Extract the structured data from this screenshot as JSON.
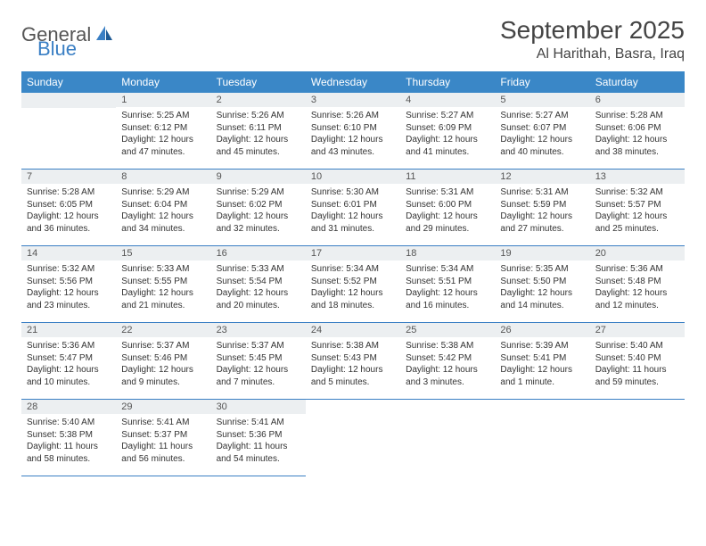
{
  "logo": {
    "text1": "General",
    "text2": "Blue"
  },
  "title": "September 2025",
  "location": "Al Harithah, Basra, Iraq",
  "weekdays": [
    "Sunday",
    "Monday",
    "Tuesday",
    "Wednesday",
    "Thursday",
    "Friday",
    "Saturday"
  ],
  "colors": {
    "header_bg": "#3a87c7",
    "accent": "#3a7fc4",
    "daynum_bg": "#eceff1"
  },
  "grid": [
    [
      null,
      {
        "n": "1",
        "sr": "5:25 AM",
        "ss": "6:12 PM",
        "dl": "12 hours and 47 minutes."
      },
      {
        "n": "2",
        "sr": "5:26 AM",
        "ss": "6:11 PM",
        "dl": "12 hours and 45 minutes."
      },
      {
        "n": "3",
        "sr": "5:26 AM",
        "ss": "6:10 PM",
        "dl": "12 hours and 43 minutes."
      },
      {
        "n": "4",
        "sr": "5:27 AM",
        "ss": "6:09 PM",
        "dl": "12 hours and 41 minutes."
      },
      {
        "n": "5",
        "sr": "5:27 AM",
        "ss": "6:07 PM",
        "dl": "12 hours and 40 minutes."
      },
      {
        "n": "6",
        "sr": "5:28 AM",
        "ss": "6:06 PM",
        "dl": "12 hours and 38 minutes."
      }
    ],
    [
      {
        "n": "7",
        "sr": "5:28 AM",
        "ss": "6:05 PM",
        "dl": "12 hours and 36 minutes."
      },
      {
        "n": "8",
        "sr": "5:29 AM",
        "ss": "6:04 PM",
        "dl": "12 hours and 34 minutes."
      },
      {
        "n": "9",
        "sr": "5:29 AM",
        "ss": "6:02 PM",
        "dl": "12 hours and 32 minutes."
      },
      {
        "n": "10",
        "sr": "5:30 AM",
        "ss": "6:01 PM",
        "dl": "12 hours and 31 minutes."
      },
      {
        "n": "11",
        "sr": "5:31 AM",
        "ss": "6:00 PM",
        "dl": "12 hours and 29 minutes."
      },
      {
        "n": "12",
        "sr": "5:31 AM",
        "ss": "5:59 PM",
        "dl": "12 hours and 27 minutes."
      },
      {
        "n": "13",
        "sr": "5:32 AM",
        "ss": "5:57 PM",
        "dl": "12 hours and 25 minutes."
      }
    ],
    [
      {
        "n": "14",
        "sr": "5:32 AM",
        "ss": "5:56 PM",
        "dl": "12 hours and 23 minutes."
      },
      {
        "n": "15",
        "sr": "5:33 AM",
        "ss": "5:55 PM",
        "dl": "12 hours and 21 minutes."
      },
      {
        "n": "16",
        "sr": "5:33 AM",
        "ss": "5:54 PM",
        "dl": "12 hours and 20 minutes."
      },
      {
        "n": "17",
        "sr": "5:34 AM",
        "ss": "5:52 PM",
        "dl": "12 hours and 18 minutes."
      },
      {
        "n": "18",
        "sr": "5:34 AM",
        "ss": "5:51 PM",
        "dl": "12 hours and 16 minutes."
      },
      {
        "n": "19",
        "sr": "5:35 AM",
        "ss": "5:50 PM",
        "dl": "12 hours and 14 minutes."
      },
      {
        "n": "20",
        "sr": "5:36 AM",
        "ss": "5:48 PM",
        "dl": "12 hours and 12 minutes."
      }
    ],
    [
      {
        "n": "21",
        "sr": "5:36 AM",
        "ss": "5:47 PM",
        "dl": "12 hours and 10 minutes."
      },
      {
        "n": "22",
        "sr": "5:37 AM",
        "ss": "5:46 PM",
        "dl": "12 hours and 9 minutes."
      },
      {
        "n": "23",
        "sr": "5:37 AM",
        "ss": "5:45 PM",
        "dl": "12 hours and 7 minutes."
      },
      {
        "n": "24",
        "sr": "5:38 AM",
        "ss": "5:43 PM",
        "dl": "12 hours and 5 minutes."
      },
      {
        "n": "25",
        "sr": "5:38 AM",
        "ss": "5:42 PM",
        "dl": "12 hours and 3 minutes."
      },
      {
        "n": "26",
        "sr": "5:39 AM",
        "ss": "5:41 PM",
        "dl": "12 hours and 1 minute."
      },
      {
        "n": "27",
        "sr": "5:40 AM",
        "ss": "5:40 PM",
        "dl": "11 hours and 59 minutes."
      }
    ],
    [
      {
        "n": "28",
        "sr": "5:40 AM",
        "ss": "5:38 PM",
        "dl": "11 hours and 58 minutes."
      },
      {
        "n": "29",
        "sr": "5:41 AM",
        "ss": "5:37 PM",
        "dl": "11 hours and 56 minutes."
      },
      {
        "n": "30",
        "sr": "5:41 AM",
        "ss": "5:36 PM",
        "dl": "11 hours and 54 minutes."
      },
      null,
      null,
      null,
      null
    ]
  ],
  "labels": {
    "sunrise": "Sunrise: ",
    "sunset": "Sunset: ",
    "daylight": "Daylight: "
  }
}
